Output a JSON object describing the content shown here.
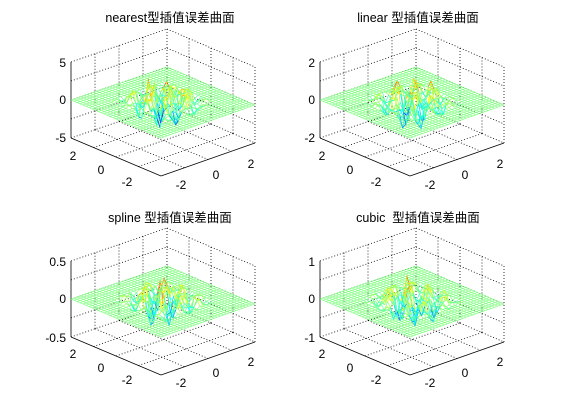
{
  "figure": {
    "background": "#ffffff",
    "colormap": "jet",
    "mesh_color": "#7ff5a0"
  },
  "chart_data": [
    {
      "type": "surface",
      "title": "nearest型插值误差曲面",
      "x_ticks": [
        "-2",
        "0",
        "2"
      ],
      "y_ticks": [
        "2",
        "0",
        "-2"
      ],
      "z_ticks": [
        "5",
        "0",
        "-5"
      ],
      "xlim": [
        -3,
        3
      ],
      "ylim": [
        -3,
        3
      ],
      "zlim": [
        -5,
        5
      ],
      "error_amplitude": 3.5,
      "grid": true
    },
    {
      "type": "surface",
      "title": "linear 型插值误差曲面",
      "x_ticks": [
        "-2",
        "0",
        "2"
      ],
      "y_ticks": [
        "2",
        "0",
        "-2"
      ],
      "z_ticks": [
        "2",
        "0",
        "-2"
      ],
      "xlim": [
        -3,
        3
      ],
      "ylim": [
        -3,
        3
      ],
      "zlim": [
        -2,
        2
      ],
      "error_amplitude": 1.2,
      "grid": true
    },
    {
      "type": "surface",
      "title": "spline 型插值误差曲面",
      "x_ticks": [
        "-2",
        "0",
        "2"
      ],
      "y_ticks": [
        "2",
        "0",
        "-2"
      ],
      "z_ticks": [
        "0.5",
        "0",
        "-0.5"
      ],
      "xlim": [
        -3,
        3
      ],
      "ylim": [
        -3,
        3
      ],
      "zlim": [
        -0.5,
        0.5
      ],
      "error_amplitude": 0.35,
      "grid": true
    },
    {
      "type": "surface",
      "title": "cubic  型插值误差曲面",
      "x_ticks": [
        "-2",
        "0",
        "2"
      ],
      "y_ticks": [
        "2",
        "0",
        "-2"
      ],
      "z_ticks": [
        "1",
        "0",
        "-1"
      ],
      "xlim": [
        -3,
        3
      ],
      "ylim": [
        -3,
        3
      ],
      "zlim": [
        -1,
        1
      ],
      "error_amplitude": 0.6,
      "grid": true
    }
  ]
}
